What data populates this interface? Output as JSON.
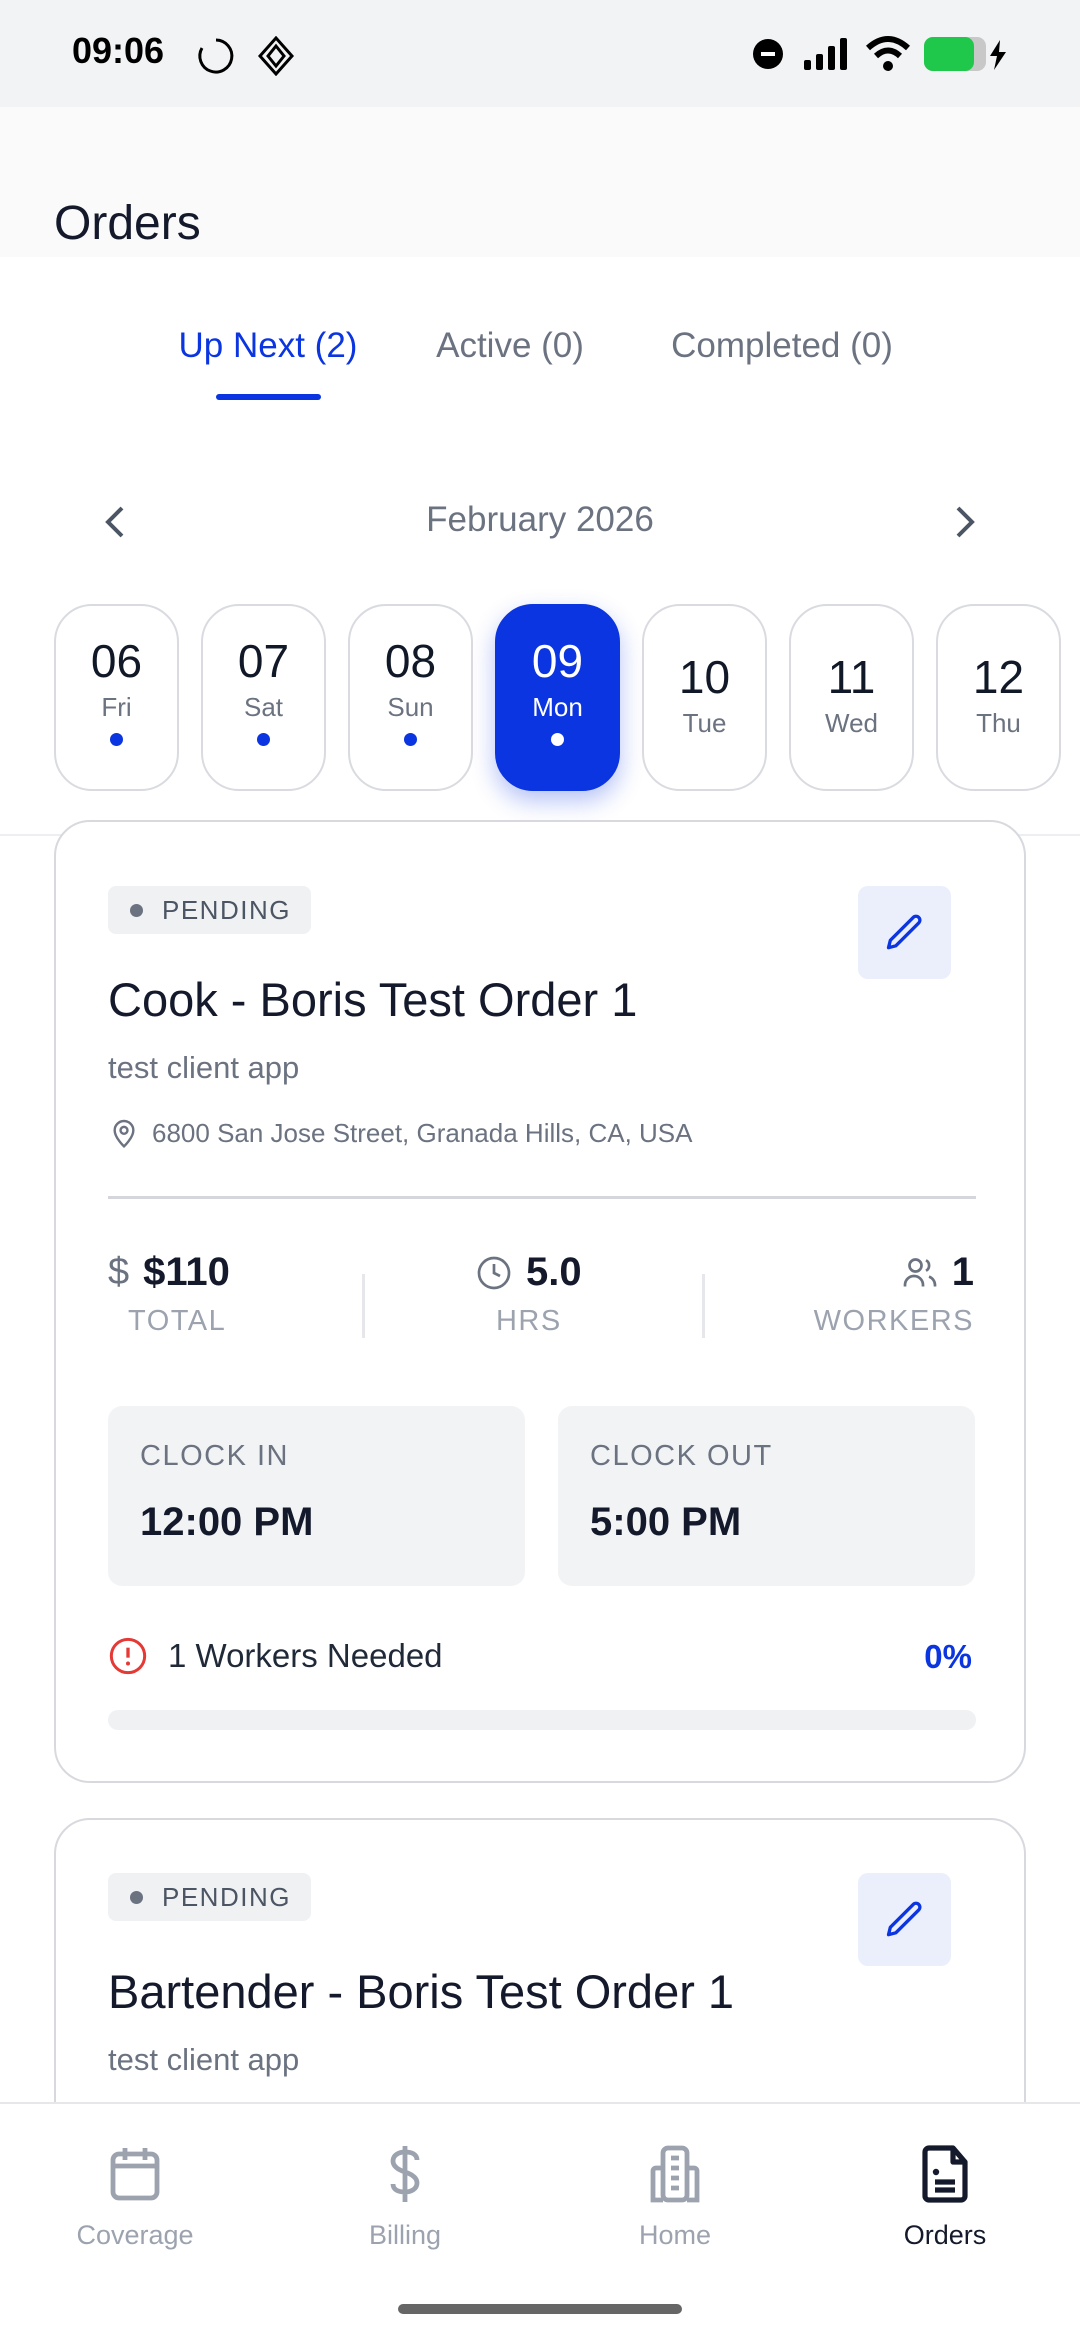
{
  "status_bar": {
    "time": "09:06"
  },
  "header": {
    "title": "Orders"
  },
  "tabs": [
    {
      "label": "Up Next (2)",
      "active": true
    },
    {
      "label": "Active (0)",
      "active": false
    },
    {
      "label": "Completed (0)",
      "active": false
    }
  ],
  "calendar": {
    "month": "February 2026",
    "days": [
      {
        "num": "06",
        "dow": "Fri",
        "dot": true,
        "selected": false
      },
      {
        "num": "07",
        "dow": "Sat",
        "dot": true,
        "selected": false
      },
      {
        "num": "08",
        "dow": "Sun",
        "dot": true,
        "selected": false
      },
      {
        "num": "09",
        "dow": "Mon",
        "dot": true,
        "selected": true
      },
      {
        "num": "10",
        "dow": "Tue",
        "dot": false,
        "selected": false
      },
      {
        "num": "11",
        "dow": "Wed",
        "dot": false,
        "selected": false
      },
      {
        "num": "12",
        "dow": "Thu",
        "dot": false,
        "selected": false
      }
    ]
  },
  "orders": [
    {
      "status": "PENDING",
      "title": "Cook - Boris Test Order 1",
      "client": "test client app",
      "address": "6800 San Jose Street, Granada Hills, CA, USA",
      "total": "$110",
      "total_label": "TOTAL",
      "hours": "5.0",
      "hours_label": "HRS",
      "workers": "1",
      "workers_label": "WORKERS",
      "clock_in_label": "CLOCK IN",
      "clock_in": "12:00 PM",
      "clock_out_label": "CLOCK OUT",
      "clock_out": "5:00 PM",
      "needed": "1 Workers Needed",
      "fill_percent_label": "0%",
      "fill_percent": 0
    },
    {
      "status": "PENDING",
      "title": "Bartender - Boris Test Order 1",
      "client": "test client app"
    }
  ],
  "nav": [
    {
      "label": "Coverage",
      "icon": "calendar-icon"
    },
    {
      "label": "Billing",
      "icon": "dollar-icon"
    },
    {
      "label": "Home",
      "icon": "building-icon"
    },
    {
      "label": "Orders",
      "icon": "document-icon",
      "active": true
    }
  ],
  "colors": {
    "accent": "#0a35e0",
    "alert": "#e53935"
  }
}
